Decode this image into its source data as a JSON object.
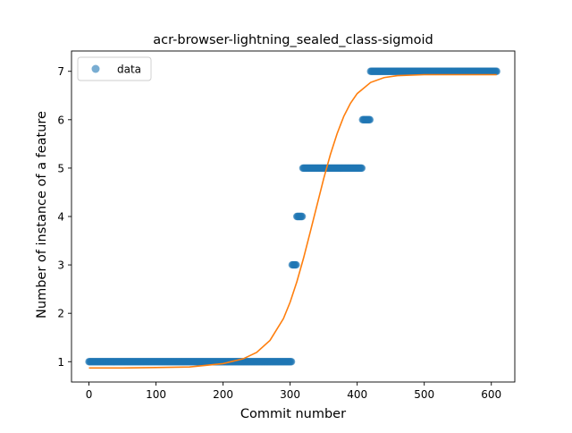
{
  "chart_data": {
    "type": "scatter",
    "title": "acr-browser-lightning_sealed_class-sigmoid",
    "xlabel": "Commit number",
    "ylabel": "Number of instance of a feature",
    "xlim": [
      -26,
      635
    ],
    "ylim": [
      0.58,
      7.42
    ],
    "xticks": [
      0,
      100,
      200,
      300,
      400,
      500,
      600
    ],
    "yticks": [
      1,
      2,
      3,
      4,
      5,
      6,
      7
    ],
    "legend": {
      "position": "top-left",
      "entries": [
        "data"
      ]
    },
    "colors": {
      "data": "#1f77b4",
      "fit": "#ff7f0e"
    },
    "series": [
      {
        "name": "data",
        "kind": "points",
        "segments": [
          {
            "x_start": 0,
            "x_end": 302,
            "y": 1
          },
          {
            "x_start": 303,
            "x_end": 309,
            "y": 3
          },
          {
            "x_start": 310,
            "x_end": 318,
            "y": 4
          },
          {
            "x_start": 319,
            "x_end": 407,
            "y": 5
          },
          {
            "x_start": 408,
            "x_end": 419,
            "y": 6
          },
          {
            "x_start": 420,
            "x_end": 608,
            "y": 7
          }
        ]
      },
      {
        "kind": "fit-curve",
        "x": [
          0,
          50,
          100,
          150,
          200,
          230,
          250,
          270,
          290,
          300,
          310,
          320,
          330,
          340,
          350,
          360,
          370,
          380,
          390,
          400,
          420,
          440,
          460,
          500,
          550,
          608
        ],
        "y": [
          0.87,
          0.87,
          0.88,
          0.89,
          0.96,
          1.06,
          1.19,
          1.44,
          1.89,
          2.23,
          2.65,
          3.14,
          3.68,
          4.23,
          4.78,
          5.28,
          5.71,
          6.07,
          6.34,
          6.54,
          6.77,
          6.87,
          6.91,
          6.93,
          6.93,
          6.93
        ]
      }
    ]
  }
}
